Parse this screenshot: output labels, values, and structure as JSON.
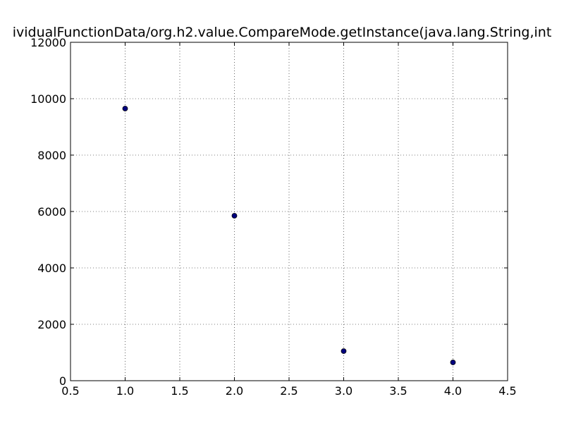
{
  "chart_data": {
    "type": "scatter",
    "title": "ividualFunctionData/org.h2.value.CompareMode.getInstance(java.lang.String,int",
    "xlabel": "",
    "ylabel": "",
    "xlim": [
      0.5,
      4.5
    ],
    "ylim": [
      0,
      12000
    ],
    "xticks": [
      "0.5",
      "1.0",
      "1.5",
      "2.0",
      "2.5",
      "3.0",
      "3.5",
      "4.0",
      "4.5"
    ],
    "yticks": [
      "0",
      "2000",
      "4000",
      "6000",
      "8000",
      "10000",
      "12000"
    ],
    "grid": true,
    "marker_color": "#00007f",
    "series": [
      {
        "x": [
          1.0,
          2.0,
          3.0,
          4.0
        ],
        "y": [
          9650,
          5850,
          1050,
          650
        ]
      }
    ]
  }
}
